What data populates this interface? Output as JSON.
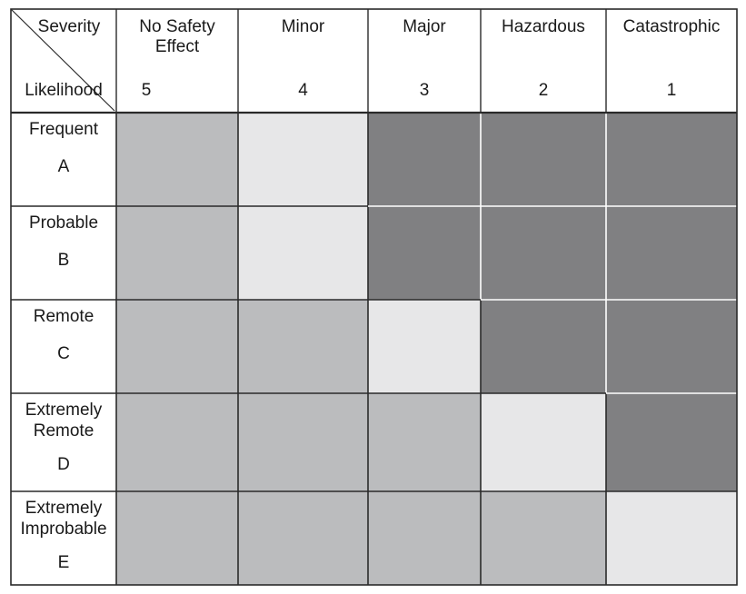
{
  "corner": {
    "severity_label": "Severity",
    "likelihood_label": "Likelihood"
  },
  "severity_columns": [
    {
      "name_lines": [
        "No Safety",
        "Effect"
      ],
      "rank": "5"
    },
    {
      "name_lines": [
        "Minor"
      ],
      "rank": "4"
    },
    {
      "name_lines": [
        "Major"
      ],
      "rank": "3"
    },
    {
      "name_lines": [
        "Hazardous"
      ],
      "rank": "2"
    },
    {
      "name_lines": [
        "Catastrophic"
      ],
      "rank": "1"
    }
  ],
  "likelihood_rows": [
    {
      "name_lines": [
        "Frequent"
      ],
      "letter": "A"
    },
    {
      "name_lines": [
        "Probable"
      ],
      "letter": "B"
    },
    {
      "name_lines": [
        "Remote"
      ],
      "letter": "C"
    },
    {
      "name_lines": [
        "Extremely",
        "Remote"
      ],
      "letter": "D"
    },
    {
      "name_lines": [
        "Extremely",
        "Improbable"
      ],
      "letter": "E"
    }
  ],
  "risk_levels": {
    "low": "#e7e7e8",
    "medium": "#bbbcbe",
    "high": "#808082"
  },
  "cells": [
    [
      "medium",
      "low",
      "high",
      "high",
      "high"
    ],
    [
      "medium",
      "low",
      "high",
      "high",
      "high"
    ],
    [
      "medium",
      "medium",
      "low",
      "high",
      "high"
    ],
    [
      "medium",
      "medium",
      "medium",
      "low",
      "high"
    ],
    [
      "medium",
      "medium",
      "medium",
      "medium",
      "low"
    ]
  ]
}
